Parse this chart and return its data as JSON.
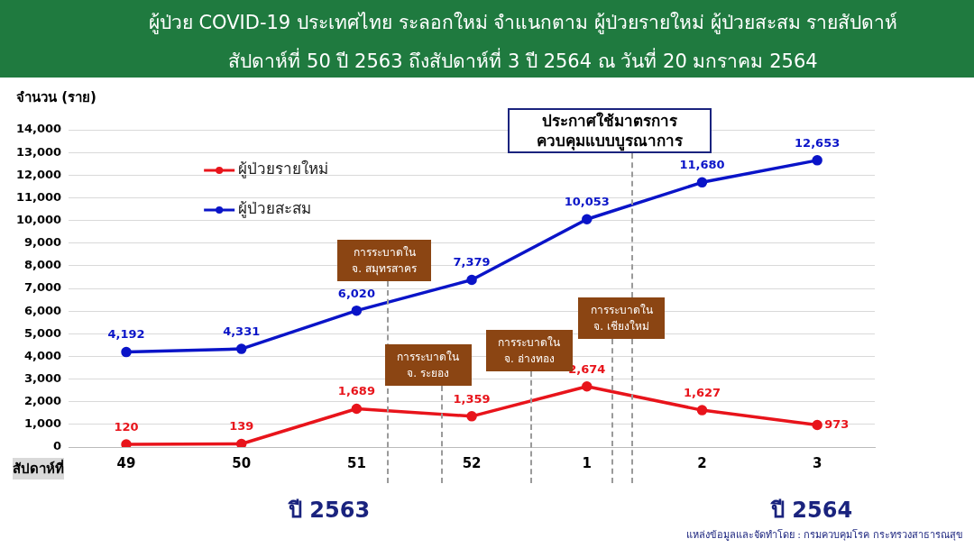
{
  "chart_data": {
    "type": "line",
    "title": "ผู้ป่วย COVID-19 ประเทศไทย ระลอกใหม่ จำแนกตาม ผู้ป่วยรายใหม่ ผู้ป่วยสะสม รายสัปดาห์",
    "subtitle": "สัปดาห์ที่ 50 ปี 2563 ถึงสัปดาห์ที่ 3 ปี 2564 ณ วันที่ 20 มกราคม 2564",
    "ylabel": "จำนวน (ราย)",
    "xlabel": "สัปดาห์ที่",
    "categories": [
      "49",
      "50",
      "51",
      "52",
      "1",
      "2",
      "3"
    ],
    "series": [
      {
        "name": "ผู้ป่วยรายใหม่",
        "color": "#e8141b",
        "values": [
          120,
          139,
          1689,
          1359,
          2674,
          1627,
          973
        ],
        "value_labels": [
          "120",
          "139",
          "1,689",
          "1,359",
          "2,674",
          "1,627",
          "973"
        ]
      },
      {
        "name": "ผู้ป่วยสะสม",
        "color": "#0a14c8",
        "values": [
          4192,
          4331,
          6020,
          7379,
          10053,
          11680,
          12653
        ],
        "value_labels": [
          "4,192",
          "4,331",
          "6,020",
          "7,379",
          "10,053",
          "11,680",
          "12,653"
        ]
      }
    ],
    "ylim": [
      0,
      14000
    ],
    "yticks": [
      {
        "value": 0,
        "label": "0"
      },
      {
        "value": 1000,
        "label": "1,000"
      },
      {
        "value": 2000,
        "label": "2,000"
      },
      {
        "value": 3000,
        "label": "3,000"
      },
      {
        "value": 4000,
        "label": "4,000"
      },
      {
        "value": 5000,
        "label": "5,000"
      },
      {
        "value": 6000,
        "label": "6,000"
      },
      {
        "value": 7000,
        "label": "7,000"
      },
      {
        "value": 8000,
        "label": "8,000"
      },
      {
        "value": 9000,
        "label": "9,000"
      },
      {
        "value": 10000,
        "label": "10,000"
      },
      {
        "value": 11000,
        "label": "11,000"
      },
      {
        "value": 12000,
        "label": "12,000"
      },
      {
        "value": 13000,
        "label": "13,000"
      },
      {
        "value": 14000,
        "label": "14,000"
      }
    ],
    "grid": "y",
    "legend": "top left",
    "marker": "circle",
    "line_style": "solid",
    "data_labels": false,
    "annotations": [
      "การระบาดใน\nจ. สมุทรสาคร",
      "การระบาดใน\nจ. ระยอง",
      "การระบาดใน\nจ. อ่างทอง",
      "การระบาดใน\nจ. เชียงใหม่",
      "ประกาศใช้มาตรการ\nควบคุมแบบบูรณาการ",
      "ปี 2563",
      "ปี 2564",
      "แหล่งข้อมูลและจัดทำโดย : กรมควบคุมโรค กระทรวงสาธารณสุข"
    ]
  }
}
